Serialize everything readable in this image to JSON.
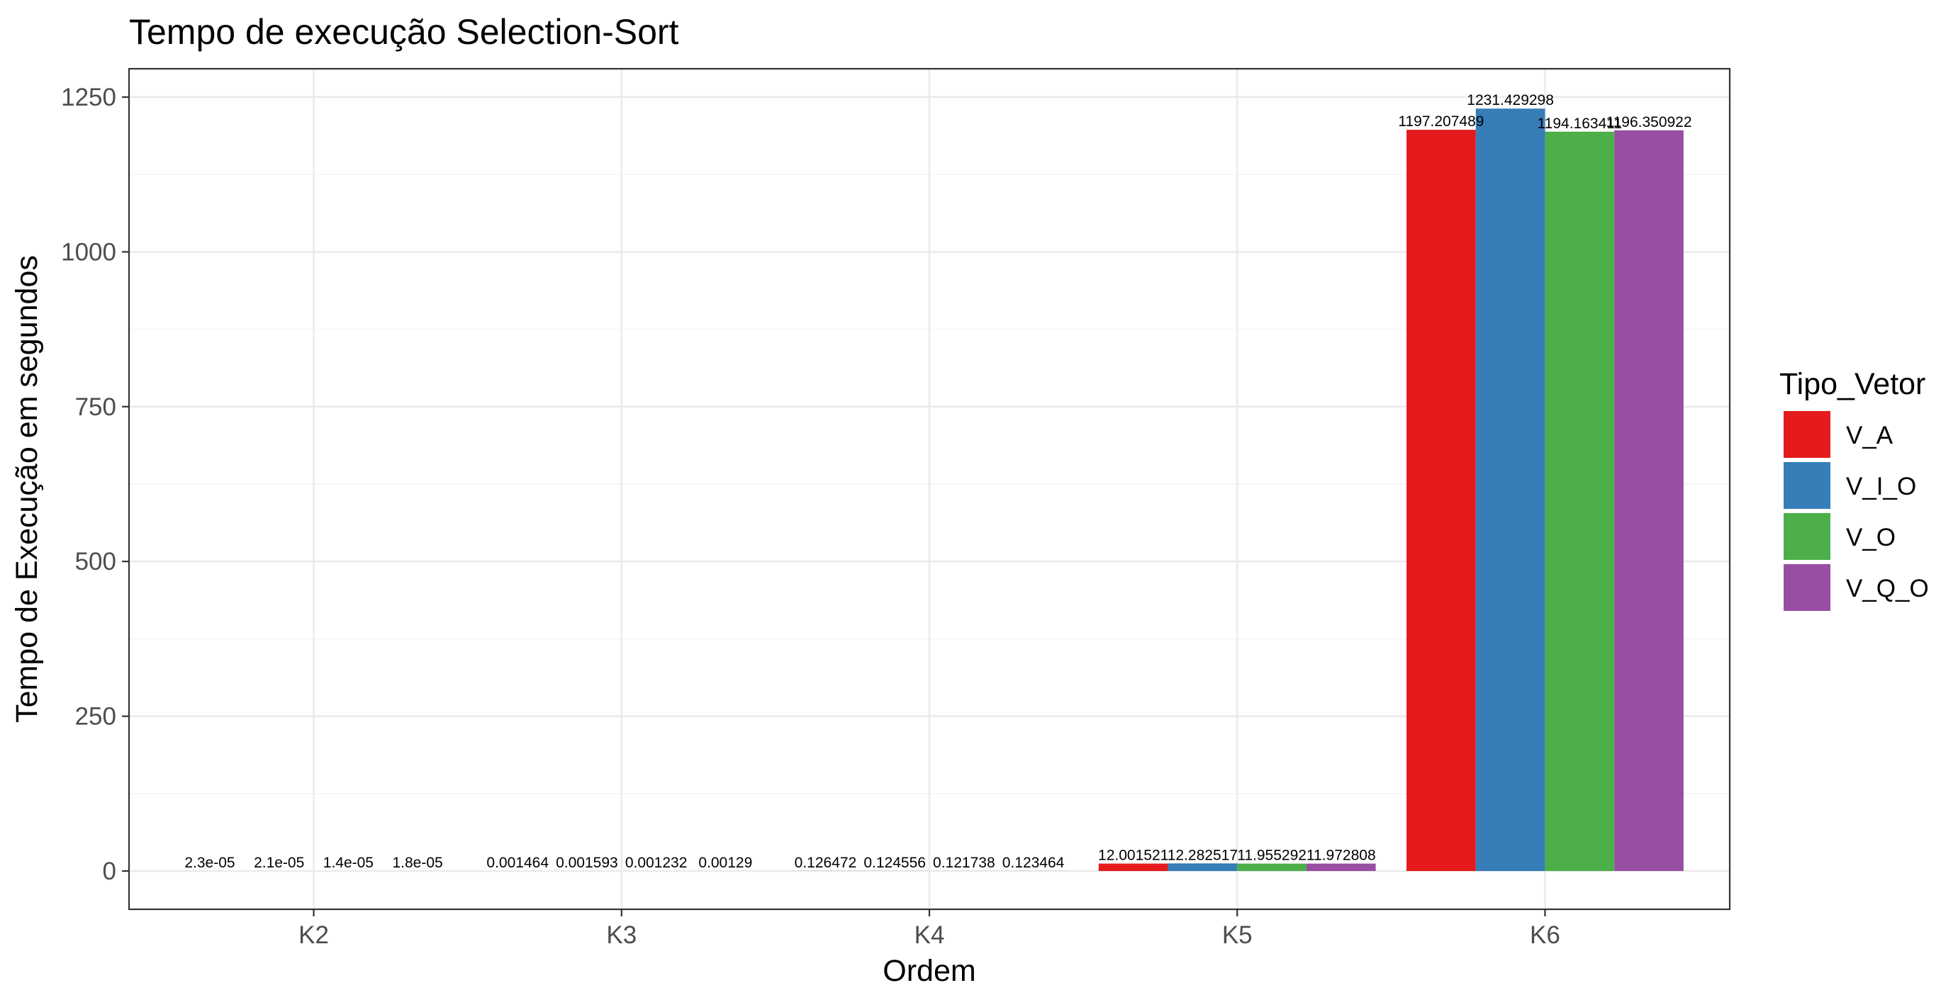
{
  "chart_data": {
    "type": "bar",
    "title": "Tempo de execução Selection-Sort",
    "xlabel": "Ordem",
    "ylabel": "Tempo de Execução em segundos",
    "categories": [
      "K2",
      "K3",
      "K4",
      "K5",
      "K6"
    ],
    "ylim": [
      -118,
      1250
    ],
    "yticks": [
      0,
      250,
      500,
      750,
      1000,
      1250
    ],
    "yticks_labels": [
      "0",
      "250",
      "500",
      "750",
      "1000",
      "1250"
    ],
    "grid": true,
    "legend": {
      "title": "Tipo_Vetor",
      "position": "right"
    },
    "series": [
      {
        "name": "V_A",
        "color": "#e41a1c",
        "values": [
          2.3e-05,
          0.001464,
          0.126472,
          12.001521,
          1197.207489
        ],
        "labels": [
          "2.3e-05",
          "0.001464",
          "0.126472",
          "12.001521",
          "1197.207489"
        ]
      },
      {
        "name": "V_I_O",
        "color": "#377eb8",
        "values": [
          2.1e-05,
          0.001593,
          0.124556,
          12.282517,
          1231.429298
        ],
        "labels": [
          "2.1e-05",
          "0.001593",
          "0.124556",
          "12.282517",
          "1231.429298"
        ]
      },
      {
        "name": "V_O",
        "color": "#4daf4a",
        "values": [
          1.4e-05,
          0.001232,
          0.121738,
          11.955292,
          1194.163411
        ],
        "labels": [
          "1.4e-05",
          "0.001232",
          "0.121738",
          "11.955292",
          "1194.163411"
        ]
      },
      {
        "name": "V_Q_O",
        "color": "#984ea3",
        "values": [
          1.8e-05,
          0.00129,
          0.123464,
          11.972808,
          1196.350922
        ],
        "labels": [
          "1.8e-05",
          "0.00129",
          "0.123464",
          "11.972808",
          "1196.350922"
        ]
      }
    ]
  }
}
